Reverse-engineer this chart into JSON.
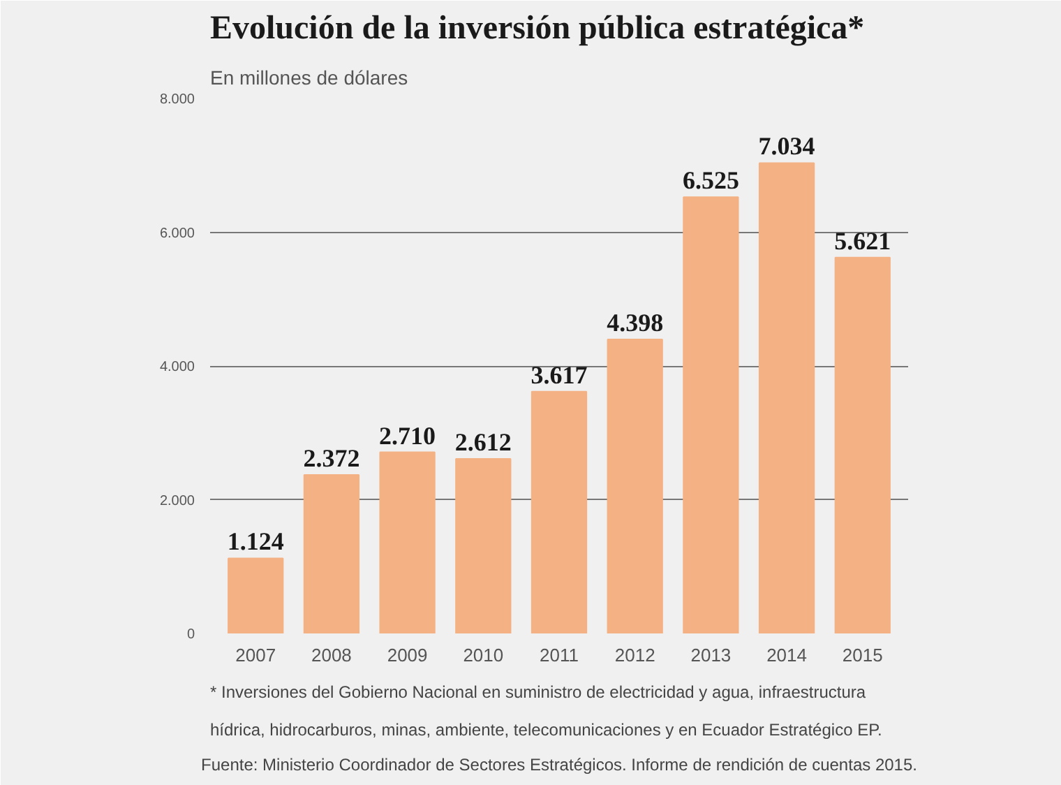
{
  "chart_data": {
    "type": "bar",
    "title": "Evolución de la inversión pública estratégica*",
    "subtitle": "En millones de dólares",
    "categories": [
      "2007",
      "2008",
      "2009",
      "2010",
      "2011",
      "2012",
      "2013",
      "2014",
      "2015"
    ],
    "values": [
      1124,
      2372,
      2710,
      2612,
      3617,
      4398,
      6525,
      7034,
      5621
    ],
    "value_labels": [
      "1.124",
      "2.372",
      "2.710",
      "2.612",
      "3.617",
      "4.398",
      "6.525",
      "7.034",
      "5.621"
    ],
    "color": "#f4b183",
    "ylim": [
      0,
      8000
    ],
    "yticks": [
      0,
      {
        "value": 2000,
        "label": "2.000"
      },
      {
        "value": 4000,
        "label": "4.000"
      },
      {
        "value": 6000,
        "label": "6.000"
      },
      {
        "value": 8000,
        "label": "8.000"
      }
    ],
    "grid": "y",
    "annotations": [
      "* Inversiones del Gobierno Nacional en suministro de electricidad y agua, infraestructura hídrica, hidrocarburos, minas, ambiente, telecomunicaciones y en Ecuador Estratégico EP.",
      "Fuente: Ministerio Coordinador de Sectores Estratégicos. Informe de rendición de cuentas 2015."
    ]
  }
}
